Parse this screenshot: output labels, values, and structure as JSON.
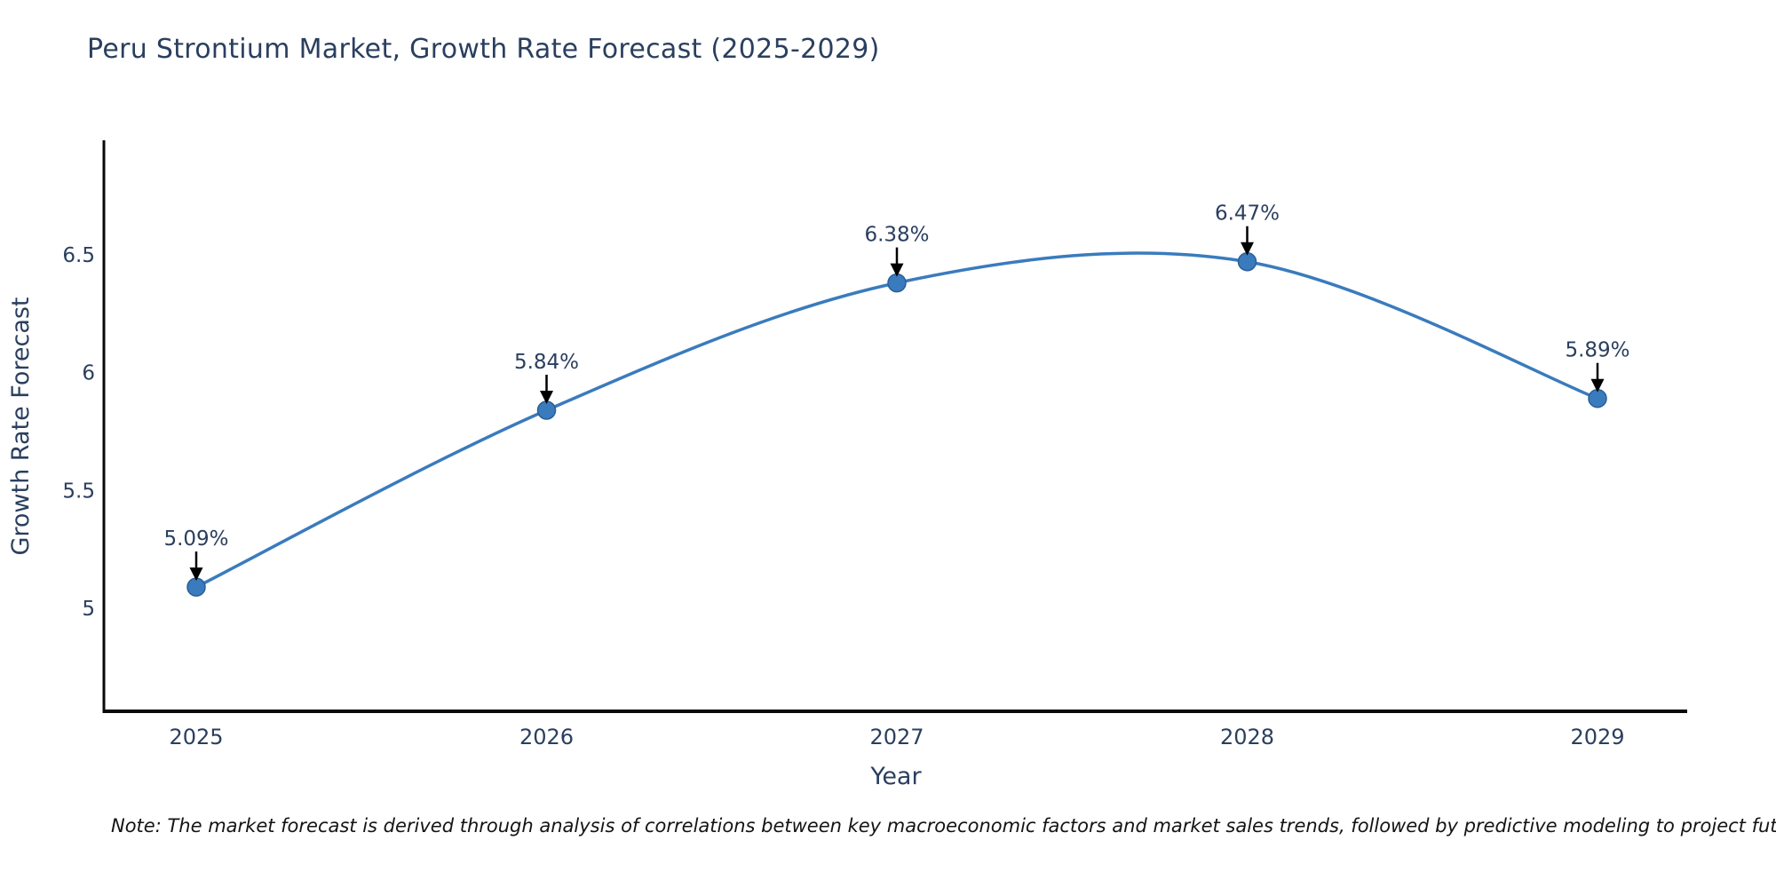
{
  "title": "Peru Strontium Market, Growth Rate Forecast (2025-2029)",
  "note": "Note: The market forecast is derived through analysis of correlations between key macroeconomic factors and market sales trends, followed by predictive modeling to project future sales",
  "chart_data": {
    "type": "line",
    "title": "Peru Strontium Market, Growth Rate Forecast (2025-2029)",
    "xlabel": "Year",
    "ylabel": "Growth Rate Forecast",
    "x": [
      2025,
      2026,
      2027,
      2028,
      2029
    ],
    "values": [
      5.09,
      5.84,
      6.38,
      6.47,
      5.89
    ],
    "point_labels": [
      "5.09%",
      "5.84%",
      "6.38%",
      "6.47%",
      "5.89%"
    ],
    "yticks": [
      5,
      5.5,
      6,
      6.5
    ],
    "ylim": [
      4.56,
      6.98
    ],
    "line_shape": "spline",
    "grid": false,
    "legend": "none",
    "colors": {
      "line": "#3a7bbd",
      "marker": "#3a7bbd",
      "marker_edge": "#2b5f94",
      "annotation_arrow": "#000000",
      "text": "#2a3f5f",
      "axis": "#0a0a0a",
      "note_text": "#141414"
    }
  }
}
